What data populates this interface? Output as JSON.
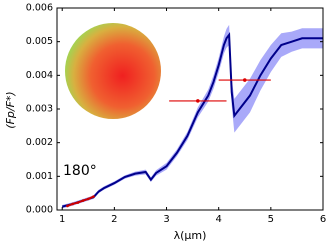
{
  "chart_data": {
    "type": "line",
    "x_label": "λ(μm)",
    "y_label": "(Fp/F*)",
    "annotation": "180°",
    "xlim": [
      0.9,
      6.0
    ],
    "xticks": [
      1,
      2,
      3,
      4,
      5,
      6
    ],
    "ylim": [
      0,
      0.006
    ],
    "yticks": [
      {
        "value": 0,
        "label": "0.000"
      },
      {
        "value": 0.001,
        "label": "0.001"
      },
      {
        "value": 0.002,
        "label": "0.002"
      },
      {
        "value": 0.003,
        "label": "0.003"
      },
      {
        "value": 0.004,
        "label": "0.004"
      },
      {
        "value": 0.005,
        "label": "0.005"
      },
      {
        "value": 0.006,
        "label": "0.006"
      }
    ],
    "line": {
      "color": "#00008b",
      "band_color": "#6f6ff5",
      "x": [
        1.0,
        1.2,
        1.4,
        1.6,
        1.7,
        1.8,
        2.0,
        2.2,
        2.4,
        2.6,
        2.7,
        2.8,
        3.0,
        3.2,
        3.4,
        3.6,
        3.8,
        3.9,
        4.0,
        4.1,
        4.15,
        4.2,
        4.25,
        4.3,
        4.4,
        4.6,
        4.8,
        5.0,
        5.2,
        5.4,
        5.6,
        5.8,
        6.0
      ],
      "values": [
        0.0001,
        0.00018,
        0.00028,
        0.00038,
        0.00055,
        0.00065,
        0.0008,
        0.00098,
        0.00108,
        0.00113,
        0.0009,
        0.0011,
        0.0013,
        0.0017,
        0.0022,
        0.0029,
        0.0034,
        0.0038,
        0.0043,
        0.0049,
        0.0051,
        0.0052,
        0.0035,
        0.0028,
        0.003,
        0.0034,
        0.004,
        0.0045,
        0.0049,
        0.005,
        0.0051,
        0.0051,
        0.0051
      ],
      "lower": [
        5e-05,
        0.00013,
        0.00023,
        0.00033,
        0.0005,
        0.0006,
        0.00075,
        0.00093,
        0.00102,
        0.00106,
        0.00083,
        0.00102,
        0.0012,
        0.0016,
        0.00208,
        0.00275,
        0.00322,
        0.0036,
        0.00408,
        0.00465,
        0.00482,
        0.0049,
        0.0031,
        0.0023,
        0.0025,
        0.0029,
        0.00355,
        0.0041,
        0.00455,
        0.0047,
        0.0048,
        0.0048,
        0.0048
      ],
      "upper": [
        0.00015,
        0.00023,
        0.00033,
        0.00043,
        0.0006,
        0.0007,
        0.00085,
        0.00103,
        0.00114,
        0.0012,
        0.00097,
        0.00118,
        0.0014,
        0.0018,
        0.00232,
        0.00305,
        0.00358,
        0.004,
        0.00452,
        0.00515,
        0.00538,
        0.0055,
        0.0039,
        0.0033,
        0.0035,
        0.0039,
        0.00445,
        0.0049,
        0.00525,
        0.0053,
        0.0054,
        0.0054,
        0.0054
      ]
    },
    "points": {
      "color": "#cc0000",
      "x": [
        1.1,
        1.2,
        1.3,
        1.4,
        1.5,
        1.6
      ],
      "values": [
        0.00012,
        0.00018,
        0.00022,
        0.00028,
        0.00033,
        0.0004
      ]
    },
    "error_points": {
      "color": "#dd0000",
      "x": [
        3.6,
        4.5
      ],
      "values": [
        0.00324,
        0.00386
      ],
      "xerr": [
        0.55,
        0.5
      ]
    }
  }
}
